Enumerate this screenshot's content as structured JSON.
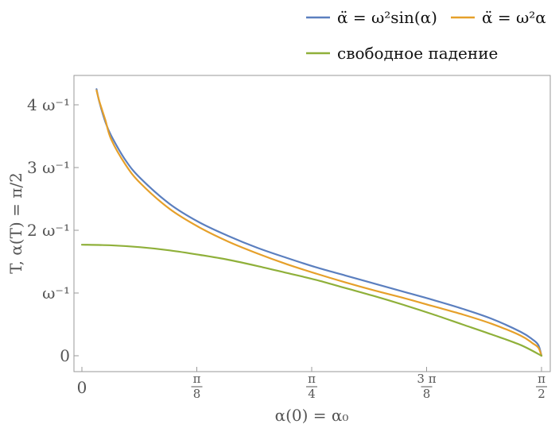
{
  "chart_data": {
    "type": "line",
    "title": "",
    "xlabel": "α(0) = α₀",
    "ylabel": "T, α(T) = π/2",
    "xlim": [
      0,
      1.5708
    ],
    "ylim": [
      -0.15,
      4.4
    ],
    "x_ticks": [
      {
        "value": 0,
        "num": "0",
        "den": ""
      },
      {
        "value": 0.3927,
        "num": "π",
        "den": "8"
      },
      {
        "value": 0.7854,
        "num": "π",
        "den": "4"
      },
      {
        "value": 1.1781,
        "num": "3 π",
        "den": "8"
      },
      {
        "value": 1.5708,
        "num": "π",
        "den": "2"
      }
    ],
    "y_ticks": [
      {
        "value": 0,
        "label": "0"
      },
      {
        "value": 1,
        "label": "ω⁻¹"
      },
      {
        "value": 2,
        "label": "2 ω⁻¹"
      },
      {
        "value": 3,
        "label": "3 ω⁻¹"
      },
      {
        "value": 4,
        "label": "4 ω⁻¹"
      }
    ],
    "series": [
      {
        "name": "α̈ = ω²sin(α)",
        "color": "#5b7fbf",
        "x": [
          0.05,
          0.06,
          0.08,
          0.1,
          0.15,
          0.2,
          0.3,
          0.4,
          0.5,
          0.6,
          0.7,
          0.8,
          0.9,
          1.0,
          1.1,
          1.2,
          1.3,
          1.4,
          1.5,
          1.54,
          1.56,
          1.5708
        ],
        "y": [
          4.25,
          4.04,
          3.73,
          3.51,
          3.11,
          2.83,
          2.42,
          2.13,
          1.91,
          1.72,
          1.56,
          1.41,
          1.28,
          1.15,
          1.02,
          0.89,
          0.75,
          0.59,
          0.38,
          0.26,
          0.17,
          0.0
        ]
      },
      {
        "name": "α̈ = ω²α",
        "color": "#e6a02a",
        "x": [
          0.05,
          0.06,
          0.08,
          0.1,
          0.15,
          0.2,
          0.3,
          0.4,
          0.5,
          0.6,
          0.7,
          0.8,
          0.9,
          1.0,
          1.1,
          1.2,
          1.3,
          1.4,
          1.5,
          1.54,
          1.56,
          1.5708
        ],
        "y": [
          4.23,
          4.05,
          3.76,
          3.45,
          3.04,
          2.75,
          2.34,
          2.05,
          1.82,
          1.63,
          1.46,
          1.31,
          1.17,
          1.04,
          0.92,
          0.79,
          0.66,
          0.51,
          0.32,
          0.2,
          0.13,
          0.0
        ]
      },
      {
        "name": "свободное падение",
        "color": "#8fb03a",
        "x": [
          0.0,
          0.1,
          0.2,
          0.3,
          0.4,
          0.5,
          0.6,
          0.7,
          0.8,
          0.9,
          1.0,
          1.1,
          1.2,
          1.3,
          1.4,
          1.5,
          1.5708
        ],
        "y": [
          1.77,
          1.76,
          1.73,
          1.68,
          1.61,
          1.53,
          1.43,
          1.32,
          1.21,
          1.08,
          0.95,
          0.81,
          0.66,
          0.5,
          0.34,
          0.17,
          0.0
        ]
      }
    ],
    "legend_position": "top"
  }
}
